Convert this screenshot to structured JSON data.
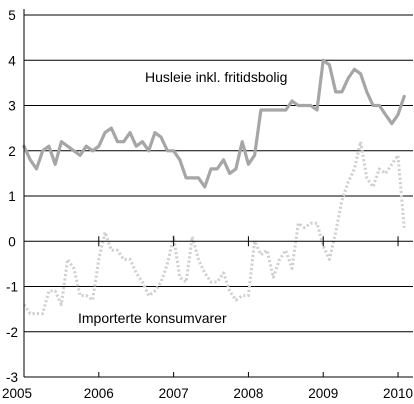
{
  "chart_data": {
    "type": "line",
    "title": "",
    "xlabel": "",
    "ylabel": "",
    "xlim": [
      2005.0,
      2010.2
    ],
    "ylim": [
      -3,
      5
    ],
    "grid": true,
    "x_ticks": [
      2005,
      2006,
      2007,
      2008,
      2009,
      2010
    ],
    "y_ticks": [
      -3,
      -2,
      -1,
      0,
      1,
      2,
      3,
      4,
      5
    ],
    "annotations": [
      {
        "text": "Husleie inkl. fritidsbolig",
        "series": 0
      },
      {
        "text": "Importerte konsumvarer",
        "series": 1
      }
    ],
    "series": [
      {
        "name": "Husleie inkl. fritidsbolig",
        "color": "#a6a6a6",
        "style": "solid",
        "x": [
          2005.0,
          2005.083,
          2005.167,
          2005.25,
          2005.333,
          2005.417,
          2005.5,
          2005.583,
          2005.667,
          2005.75,
          2005.833,
          2005.917,
          2006.0,
          2006.083,
          2006.167,
          2006.25,
          2006.333,
          2006.417,
          2006.5,
          2006.583,
          2006.667,
          2006.75,
          2006.833,
          2006.917,
          2007.0,
          2007.083,
          2007.167,
          2007.25,
          2007.333,
          2007.417,
          2007.5,
          2007.583,
          2007.667,
          2007.75,
          2007.833,
          2007.917,
          2008.0,
          2008.083,
          2008.167,
          2008.25,
          2008.333,
          2008.417,
          2008.5,
          2008.583,
          2008.667,
          2008.75,
          2008.833,
          2008.917,
          2009.0,
          2009.083,
          2009.167,
          2009.25,
          2009.333,
          2009.417,
          2009.5,
          2009.583,
          2009.667,
          2009.75,
          2009.833,
          2009.917,
          2010.0,
          2010.083
        ],
        "y": [
          2.1,
          1.8,
          1.6,
          2.0,
          2.1,
          1.7,
          2.2,
          2.1,
          2.0,
          1.9,
          2.1,
          2.0,
          2.1,
          2.4,
          2.5,
          2.2,
          2.2,
          2.4,
          2.1,
          2.2,
          2.0,
          2.4,
          2.3,
          2.0,
          2.0,
          1.8,
          1.4,
          1.4,
          1.4,
          1.2,
          1.6,
          1.6,
          1.8,
          1.5,
          1.6,
          2.2,
          1.7,
          1.9,
          2.9,
          2.9,
          2.9,
          2.9,
          2.9,
          3.1,
          3.0,
          3.0,
          3.0,
          2.9,
          4.0,
          3.9,
          3.3,
          3.3,
          3.6,
          3.8,
          3.7,
          3.3,
          3.0,
          3.0,
          2.8,
          2.6,
          2.8,
          3.2
        ]
      },
      {
        "name": "Importerte konsumvarer",
        "color": "#d0d0d0",
        "style": "dotted",
        "x": [
          2005.0,
          2005.083,
          2005.167,
          2005.25,
          2005.333,
          2005.417,
          2005.5,
          2005.583,
          2005.667,
          2005.75,
          2005.833,
          2005.917,
          2006.0,
          2006.083,
          2006.167,
          2006.25,
          2006.333,
          2006.417,
          2006.5,
          2006.583,
          2006.667,
          2006.75,
          2006.833,
          2006.917,
          2007.0,
          2007.083,
          2007.167,
          2007.25,
          2007.333,
          2007.417,
          2007.5,
          2007.583,
          2007.667,
          2007.75,
          2007.833,
          2007.917,
          2008.0,
          2008.083,
          2008.167,
          2008.25,
          2008.333,
          2008.417,
          2008.5,
          2008.583,
          2008.667,
          2008.75,
          2008.833,
          2008.917,
          2009.0,
          2009.083,
          2009.167,
          2009.25,
          2009.333,
          2009.417,
          2009.5,
          2009.583,
          2009.667,
          2009.75,
          2009.833,
          2009.917,
          2010.0,
          2010.083
        ],
        "y": [
          -1.4,
          -1.6,
          -1.6,
          -1.6,
          -1.1,
          -1.1,
          -1.4,
          -0.4,
          -0.6,
          -1.2,
          -1.2,
          -1.3,
          -0.4,
          0.2,
          -0.2,
          -0.2,
          -0.4,
          -0.4,
          -0.7,
          -0.9,
          -1.2,
          -1.1,
          -0.9,
          -0.5,
          0.1,
          -0.8,
          -0.9,
          0.1,
          -0.4,
          -0.7,
          -0.9,
          -0.9,
          -0.7,
          -1.1,
          -1.3,
          -1.2,
          -1.2,
          0.0,
          -0.3,
          -0.2,
          -0.8,
          -0.4,
          -0.2,
          -0.6,
          0.4,
          0.3,
          0.4,
          0.4,
          -0.1,
          -0.4,
          0.2,
          0.9,
          1.3,
          1.6,
          2.2,
          1.4,
          1.2,
          1.6,
          1.5,
          1.7,
          1.9,
          0.3
        ]
      }
    ]
  }
}
